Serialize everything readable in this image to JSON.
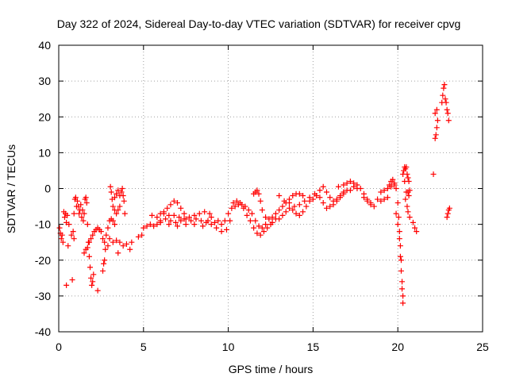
{
  "chart_data": {
    "type": "scatter",
    "title": "Day 322 of 2024, Sidereal Day-to-day VTEC variation (SDTVAR) for receiver cpvg",
    "xlabel": "GPS time / hours",
    "ylabel": "SDTVAR / TECUs",
    "xlim": [
      0,
      25
    ],
    "ylim": [
      -40,
      40
    ],
    "xticks": [
      0,
      5,
      10,
      15,
      20,
      25
    ],
    "yticks": [
      -40,
      -30,
      -20,
      -10,
      0,
      10,
      20,
      30,
      40
    ],
    "xtick_labels": [
      "0",
      "5",
      "10",
      "15",
      "20",
      "25"
    ],
    "ytick_labels": [
      "-40",
      "-30",
      "-20",
      "-10",
      "0",
      "10",
      "20",
      "30",
      "40"
    ],
    "grid": true,
    "marker": "+",
    "series": [
      {
        "name": "SDTVAR",
        "color": "#ff0000",
        "points": [
          [
            0.05,
            -11
          ],
          [
            0.1,
            -12.5
          ],
          [
            0.15,
            -14
          ],
          [
            0.2,
            -13
          ],
          [
            0.25,
            -15
          ],
          [
            0.3,
            -6.5
          ],
          [
            0.35,
            -8
          ],
          [
            0.4,
            -7
          ],
          [
            0.45,
            -9.5
          ],
          [
            0.5,
            -7.5
          ],
          [
            0.55,
            -16
          ],
          [
            0.6,
            -10
          ],
          [
            0.45,
            -27
          ],
          [
            0.8,
            -25.5
          ],
          [
            0.75,
            -13
          ],
          [
            0.85,
            -12
          ],
          [
            0.9,
            -14
          ],
          [
            0.95,
            -3
          ],
          [
            1.0,
            -2.5
          ],
          [
            1.05,
            -5
          ],
          [
            0.9,
            -7
          ],
          [
            1.1,
            -3.5
          ],
          [
            1.15,
            -5
          ],
          [
            1.2,
            -7
          ],
          [
            1.25,
            -6
          ],
          [
            1.3,
            -4.5
          ],
          [
            1.35,
            -8
          ],
          [
            1.4,
            -6
          ],
          [
            1.45,
            -9
          ],
          [
            1.5,
            -7
          ],
          [
            1.55,
            -3
          ],
          [
            1.6,
            -2.5
          ],
          [
            1.65,
            -4
          ],
          [
            1.7,
            -10
          ],
          [
            1.75,
            -15
          ],
          [
            1.8,
            -19
          ],
          [
            1.85,
            -22
          ],
          [
            1.9,
            -25
          ],
          [
            1.95,
            -27
          ],
          [
            2.0,
            -26
          ],
          [
            2.05,
            -24
          ],
          [
            1.5,
            -18
          ],
          [
            1.6,
            -17
          ],
          [
            1.7,
            -16.5
          ],
          [
            1.8,
            -15
          ],
          [
            1.9,
            -14
          ],
          [
            2.0,
            -13
          ],
          [
            2.1,
            -12
          ],
          [
            2.2,
            -11.5
          ],
          [
            2.3,
            -11
          ],
          [
            2.4,
            -11.5
          ],
          [
            2.5,
            -12
          ],
          [
            2.6,
            -14
          ],
          [
            2.7,
            -15
          ],
          [
            2.8,
            -13
          ],
          [
            2.9,
            -11
          ],
          [
            3.0,
            -9
          ],
          [
            3.1,
            -8.5
          ],
          [
            3.2,
            -9
          ],
          [
            3.3,
            -10
          ],
          [
            2.3,
            -28.5
          ],
          [
            2.6,
            -23
          ],
          [
            2.65,
            -21
          ],
          [
            2.7,
            -20
          ],
          [
            2.75,
            -17
          ],
          [
            2.9,
            -16
          ],
          [
            3.0,
            -14
          ],
          [
            3.05,
            0.5
          ],
          [
            3.1,
            -1
          ],
          [
            3.15,
            -3
          ],
          [
            3.2,
            -5
          ],
          [
            3.3,
            -6
          ],
          [
            3.4,
            -7
          ],
          [
            3.5,
            -6
          ],
          [
            3.6,
            -5
          ],
          [
            3.3,
            -2.5
          ],
          [
            3.4,
            -1.5
          ],
          [
            3.5,
            -0.5
          ],
          [
            3.6,
            -2
          ],
          [
            3.7,
            -1
          ],
          [
            3.75,
            0
          ],
          [
            3.8,
            -2
          ],
          [
            3.85,
            -3.5
          ],
          [
            3.9,
            -7
          ],
          [
            3.2,
            -15
          ],
          [
            3.4,
            -14.5
          ],
          [
            3.6,
            -15
          ],
          [
            3.8,
            -16
          ],
          [
            4.0,
            -15.5
          ],
          [
            4.2,
            -17
          ],
          [
            4.3,
            -15
          ],
          [
            3.5,
            -18
          ],
          [
            4.7,
            -13.5
          ],
          [
            4.9,
            -13
          ],
          [
            5.0,
            -11
          ],
          [
            5.2,
            -10.5
          ],
          [
            5.4,
            -10
          ],
          [
            5.6,
            -10.5
          ],
          [
            5.8,
            -10
          ],
          [
            6.0,
            -9.5
          ],
          [
            5.5,
            -7.5
          ],
          [
            5.8,
            -8
          ],
          [
            6.0,
            -7
          ],
          [
            6.2,
            -6.5
          ],
          [
            6.4,
            -5.5
          ],
          [
            6.6,
            -4.5
          ],
          [
            6.8,
            -3.5
          ],
          [
            7.0,
            -4
          ],
          [
            7.2,
            -5.5
          ],
          [
            7.4,
            -7
          ],
          [
            6.0,
            -9
          ],
          [
            6.3,
            -8.5
          ],
          [
            6.6,
            -9
          ],
          [
            6.9,
            -9.5
          ],
          [
            7.2,
            -9
          ],
          [
            7.5,
            -8.5
          ],
          [
            7.8,
            -9
          ],
          [
            8.1,
            -8.5
          ],
          [
            8.4,
            -9
          ],
          [
            8.7,
            -9.5
          ],
          [
            6.2,
            -7
          ],
          [
            6.5,
            -7.5
          ],
          [
            6.8,
            -7.5
          ],
          [
            7.1,
            -8
          ],
          [
            7.4,
            -8.5
          ],
          [
            7.7,
            -8
          ],
          [
            8.0,
            -7.5
          ],
          [
            8.3,
            -7
          ],
          [
            8.6,
            -6.5
          ],
          [
            8.9,
            -7
          ],
          [
            6.5,
            -10
          ],
          [
            7.0,
            -10.5
          ],
          [
            7.5,
            -10
          ],
          [
            8.0,
            -10
          ],
          [
            8.5,
            -10.5
          ],
          [
            9.0,
            -10
          ],
          [
            9.3,
            -11
          ],
          [
            9.6,
            -12
          ],
          [
            9.9,
            -11.5
          ],
          [
            10.1,
            -9
          ],
          [
            8.8,
            -9
          ],
          [
            9.0,
            -8
          ],
          [
            9.2,
            -9.5
          ],
          [
            9.4,
            -9
          ],
          [
            9.6,
            -10
          ],
          [
            9.8,
            -9
          ],
          [
            10.0,
            -7
          ],
          [
            10.2,
            -5.5
          ],
          [
            10.4,
            -5
          ],
          [
            10.6,
            -4.5
          ],
          [
            10.8,
            -4.5
          ],
          [
            11.0,
            -5
          ],
          [
            11.2,
            -6
          ],
          [
            10.3,
            -4
          ],
          [
            10.5,
            -3.5
          ],
          [
            10.7,
            -4
          ],
          [
            10.9,
            -5.5
          ],
          [
            11.1,
            -7.5
          ],
          [
            11.3,
            -9
          ],
          [
            11.5,
            -11
          ],
          [
            11.7,
            -12.5
          ],
          [
            11.9,
            -13
          ],
          [
            12.1,
            -12
          ],
          [
            12.3,
            -11
          ],
          [
            12.5,
            -10
          ],
          [
            11.4,
            -7
          ],
          [
            11.6,
            -9
          ],
          [
            11.8,
            -10.5
          ],
          [
            12.0,
            -11
          ],
          [
            12.2,
            -10
          ],
          [
            11.5,
            -1.5
          ],
          [
            11.6,
            -1
          ],
          [
            11.7,
            -0.5
          ],
          [
            11.8,
            -1.5
          ],
          [
            11.9,
            -3.5
          ],
          [
            12.0,
            -6
          ],
          [
            12.2,
            -8
          ],
          [
            12.4,
            -8.5
          ],
          [
            12.6,
            -8
          ],
          [
            12.8,
            -7
          ],
          [
            12.6,
            -9.5
          ],
          [
            12.8,
            -8.5
          ],
          [
            13.0,
            -6
          ],
          [
            13.2,
            -5
          ],
          [
            13.4,
            -4
          ],
          [
            13.6,
            -3
          ],
          [
            13.8,
            -2
          ],
          [
            14.0,
            -1.5
          ],
          [
            14.2,
            -1.5
          ],
          [
            14.4,
            -2
          ],
          [
            13.0,
            -8.5
          ],
          [
            13.2,
            -7.5
          ],
          [
            13.4,
            -6.5
          ],
          [
            13.6,
            -5.5
          ],
          [
            13.8,
            -6
          ],
          [
            14.0,
            -7
          ],
          [
            14.2,
            -7.5
          ],
          [
            14.4,
            -6.5
          ],
          [
            14.6,
            -5
          ],
          [
            14.8,
            -3.5
          ],
          [
            13.0,
            -2
          ],
          [
            13.3,
            -3.5
          ],
          [
            13.6,
            -4
          ],
          [
            13.9,
            -5
          ],
          [
            14.2,
            -4.5
          ],
          [
            14.5,
            -3.5
          ],
          [
            14.8,
            -2.5
          ],
          [
            15.1,
            -1.5
          ],
          [
            15.4,
            -0.5
          ],
          [
            15.6,
            0.5
          ],
          [
            15.0,
            -3
          ],
          [
            15.2,
            -2
          ],
          [
            15.4,
            -2.5
          ],
          [
            15.6,
            -4
          ],
          [
            15.8,
            -5.5
          ],
          [
            16.0,
            -5
          ],
          [
            16.2,
            -4.5
          ],
          [
            16.4,
            -3.5
          ],
          [
            16.6,
            -2.5
          ],
          [
            16.8,
            -1.5
          ],
          [
            15.8,
            -1
          ],
          [
            16.0,
            -2.5
          ],
          [
            16.2,
            -3.5
          ],
          [
            16.4,
            -3
          ],
          [
            16.6,
            -2
          ],
          [
            16.8,
            -1
          ],
          [
            17.0,
            -0.5
          ],
          [
            17.2,
            -0.5
          ],
          [
            17.4,
            0.5
          ],
          [
            17.6,
            0
          ],
          [
            16.5,
            0.5
          ],
          [
            16.8,
            1
          ],
          [
            17.0,
            1.5
          ],
          [
            17.2,
            2
          ],
          [
            17.4,
            1.5
          ],
          [
            17.6,
            1
          ],
          [
            17.8,
            0
          ],
          [
            18.0,
            -1.5
          ],
          [
            18.2,
            -3
          ],
          [
            18.4,
            -4
          ],
          [
            18.0,
            -2.5
          ],
          [
            18.2,
            -3.5
          ],
          [
            18.4,
            -4.5
          ],
          [
            18.6,
            -5
          ],
          [
            18.8,
            -3
          ],
          [
            19.0,
            -1
          ],
          [
            19.2,
            -0.5
          ],
          [
            19.4,
            0
          ],
          [
            19.6,
            0.5
          ],
          [
            19.8,
            1.5
          ],
          [
            19.0,
            -3.5
          ],
          [
            19.2,
            -3
          ],
          [
            19.4,
            -2.5
          ],
          [
            19.5,
            1
          ],
          [
            19.6,
            2
          ],
          [
            19.7,
            2.5
          ],
          [
            19.8,
            1
          ],
          [
            19.9,
            0
          ],
          [
            20.0,
            -4
          ],
          [
            20.05,
            -8
          ],
          [
            20.1,
            -12
          ],
          [
            20.15,
            -16
          ],
          [
            20.2,
            -20
          ],
          [
            20.2,
            -23
          ],
          [
            20.25,
            -26
          ],
          [
            20.25,
            -28
          ],
          [
            20.3,
            -30
          ],
          [
            20.3,
            -32
          ],
          [
            20.15,
            -19
          ],
          [
            20.1,
            -14
          ],
          [
            20.0,
            -10
          ],
          [
            19.9,
            -7
          ],
          [
            20.3,
            4
          ],
          [
            20.35,
            5
          ],
          [
            20.4,
            6
          ],
          [
            20.45,
            5.5
          ],
          [
            20.5,
            6
          ],
          [
            20.55,
            4
          ],
          [
            20.6,
            3
          ],
          [
            20.65,
            2
          ],
          [
            20.6,
            -1
          ],
          [
            20.65,
            -2
          ],
          [
            20.7,
            -0.5
          ],
          [
            20.4,
            2
          ],
          [
            20.5,
            -1
          ],
          [
            20.45,
            -3
          ],
          [
            20.55,
            -5
          ],
          [
            20.6,
            -6.5
          ],
          [
            20.7,
            -8
          ],
          [
            20.9,
            -9.5
          ],
          [
            21.0,
            -11
          ],
          [
            21.1,
            -12
          ],
          [
            22.1,
            4
          ],
          [
            22.2,
            14
          ],
          [
            22.25,
            15
          ],
          [
            22.3,
            17
          ],
          [
            22.35,
            19
          ],
          [
            22.2,
            21
          ],
          [
            22.3,
            22
          ],
          [
            22.6,
            24
          ],
          [
            22.65,
            26
          ],
          [
            22.7,
            28
          ],
          [
            22.75,
            29
          ],
          [
            22.8,
            25
          ],
          [
            22.85,
            24
          ],
          [
            22.9,
            22
          ],
          [
            22.95,
            21
          ],
          [
            23.0,
            19
          ],
          [
            22.9,
            -8
          ],
          [
            22.95,
            -7
          ],
          [
            23.0,
            -6
          ],
          [
            23.05,
            -5.5
          ]
        ]
      }
    ]
  }
}
